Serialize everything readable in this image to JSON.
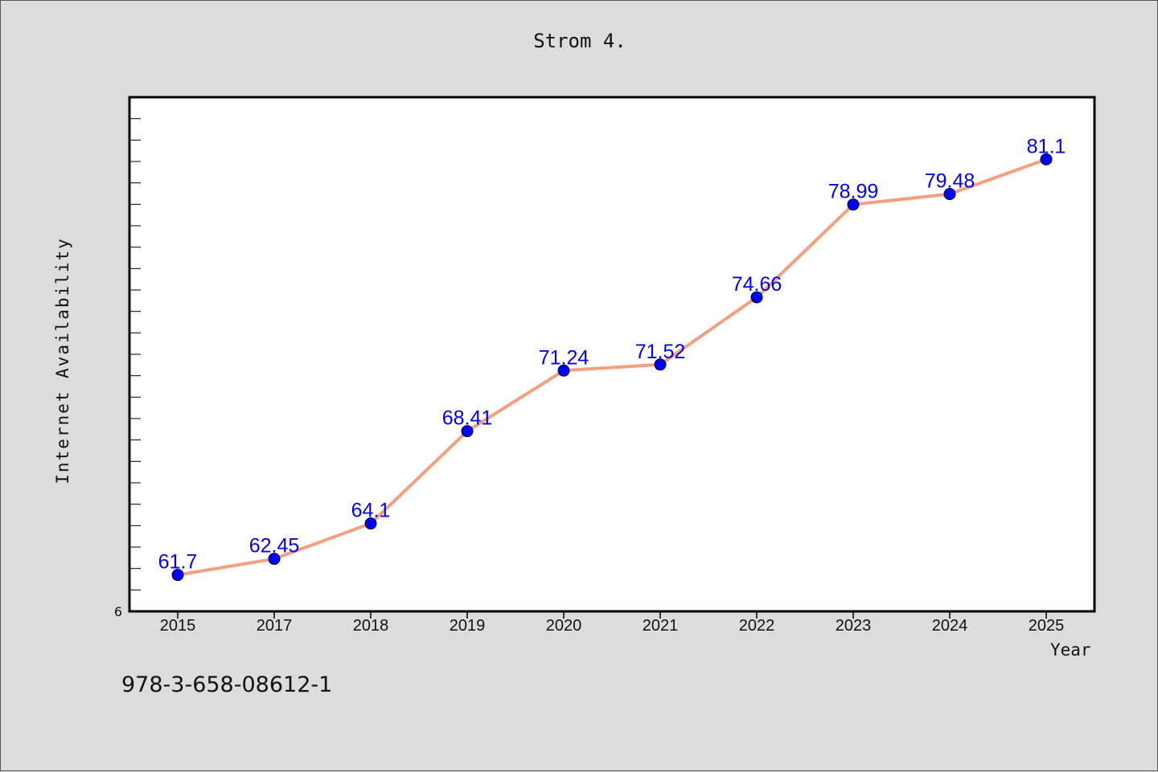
{
  "title": "Strom 4.",
  "footer_code": "978-3-658-08612-1",
  "colors": {
    "background": "#dcdcdc",
    "plot_background": "#ffffff",
    "line": "#f4a07f",
    "marker": "#0000ff",
    "data_label": "#0000ff"
  },
  "chart_data": {
    "type": "line",
    "x": [
      "2015",
      "2017",
      "2018",
      "2019",
      "2020",
      "2021",
      "2022",
      "2023",
      "2024",
      "2025"
    ],
    "values": [
      61.7,
      62.45,
      64.1,
      68.41,
      71.24,
      71.52,
      74.66,
      78.99,
      79.48,
      81.1
    ],
    "data_labels": [
      "61.7",
      "62.45",
      "64.1",
      "68.41",
      "71.24",
      "71.52",
      "74.66",
      "78.99",
      "79.48",
      "81.1"
    ],
    "xlabel": "Year",
    "ylabel": "Internet Availability",
    "y_tick_label": "6",
    "ylim": [
      60,
      84
    ],
    "grid": false,
    "legend": "none",
    "line_color": "#f4a07f",
    "marker_color": "#0000ff"
  }
}
